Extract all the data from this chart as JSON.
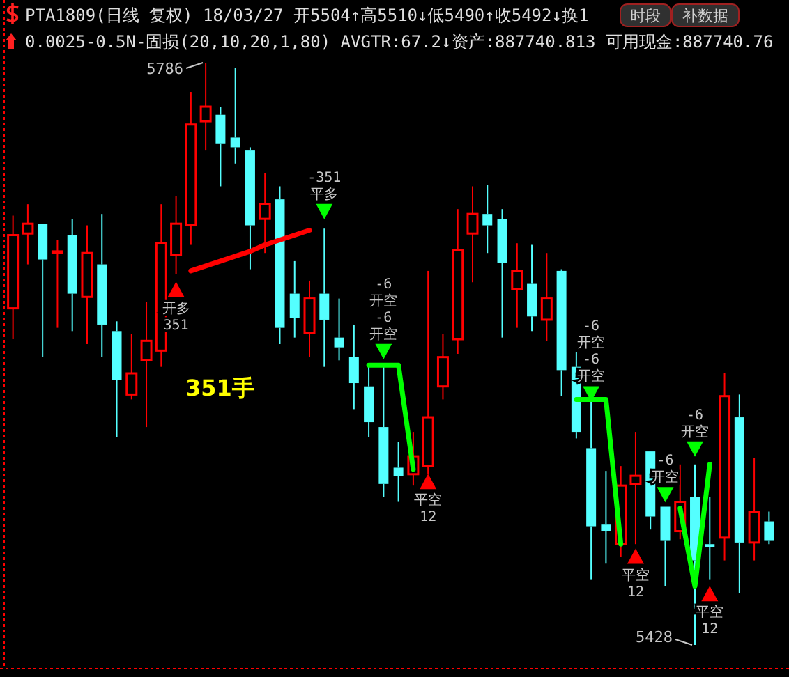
{
  "chart_data": {
    "type": "candlestick",
    "title": "PTA1809(日线 复权) 18/03/27 开5504↑高5510↓低5490↑收5492↓换1",
    "subtitle": "0.0025-0.5N-固损(20,10,20,1,80) AVGTR:67.2↓资产:887740.813 可用现金:887740.76",
    "categories": [
      null,
      null,
      null,
      null,
      null,
      null,
      null,
      null,
      null,
      null,
      null,
      null,
      null,
      null,
      null,
      null,
      null,
      null,
      null,
      null,
      null,
      null,
      null,
      null,
      null,
      null,
      null,
      null,
      null,
      null,
      null,
      null,
      null,
      null,
      null,
      null,
      null,
      null,
      null,
      null,
      null,
      null,
      null,
      null,
      null,
      null,
      null,
      null,
      null,
      null,
      null,
      null
    ],
    "ohlc": [
      [
        5635,
        5692,
        5616,
        5680
      ],
      [
        5681,
        5699,
        5662,
        5687
      ],
      [
        5687,
        5687,
        5605,
        5665
      ],
      [
        5669,
        5677,
        5623,
        5670
      ],
      [
        5680,
        5690,
        5621,
        5644
      ],
      [
        5642,
        5686,
        5613,
        5669
      ],
      [
        5662,
        5693,
        5605,
        5625
      ],
      [
        5621,
        5627,
        5556,
        5591
      ],
      [
        5582,
        5619,
        5579,
        5595
      ],
      [
        5603,
        5639,
        5562,
        5615
      ],
      [
        5609,
        5699,
        5599,
        5675
      ],
      [
        5668,
        5704,
        5656,
        5687
      ],
      [
        5686,
        5768,
        5674,
        5748
      ],
      [
        5750,
        5786,
        5732,
        5759
      ],
      [
        5754,
        5759,
        5710,
        5736
      ],
      [
        5740,
        5783,
        5724,
        5734
      ],
      [
        5732,
        5734,
        5659,
        5686
      ],
      [
        5690,
        5718,
        5669,
        5699
      ],
      [
        5702,
        5710,
        5613,
        5623
      ],
      [
        5644,
        5664,
        5617,
        5629
      ],
      [
        5620,
        5652,
        5605,
        5641
      ],
      [
        5644,
        5684,
        5599,
        5628
      ],
      [
        5617,
        5641,
        5603,
        5611
      ],
      [
        5605,
        5625,
        5573,
        5589
      ],
      [
        5587,
        5599,
        5556,
        5565
      ],
      [
        5562,
        5599,
        5519,
        5527
      ],
      [
        5537,
        5553,
        5516,
        5532
      ],
      [
        5533,
        5559,
        5526,
        5544
      ],
      [
        5538,
        5658,
        5533,
        5568
      ],
      [
        5587,
        5619,
        5579,
        5605
      ],
      [
        5616,
        5696,
        5607,
        5671
      ],
      [
        5681,
        5710,
        5651,
        5693
      ],
      [
        5693,
        5711,
        5669,
        5686
      ],
      [
        5690,
        5696,
        5617,
        5663
      ],
      [
        5647,
        5675,
        5623,
        5658
      ],
      [
        5650,
        5674,
        5621,
        5630
      ],
      [
        5628,
        5669,
        5615,
        5641
      ],
      [
        5658,
        5659,
        5581,
        5597
      ],
      [
        5599,
        5608,
        5555,
        5559
      ],
      [
        5549,
        5579,
        5468,
        5501
      ],
      [
        5502,
        5535,
        5478,
        5498
      ],
      [
        5490,
        5538,
        5482,
        5526
      ],
      [
        5527,
        5559,
        5490,
        5532
      ],
      [
        5547,
        5547,
        5499,
        5507
      ],
      [
        5513,
        5513,
        5464,
        5492
      ],
      [
        5498,
        5539,
        5493,
        5516
      ],
      [
        5519,
        5539,
        5428,
        5480
      ],
      [
        5490,
        5519,
        5468,
        5488
      ],
      [
        5494,
        5595,
        5480,
        5581
      ],
      [
        5568,
        5582,
        5460,
        5491
      ],
      [
        5491,
        5543,
        5480,
        5510
      ],
      [
        5504,
        5510,
        5490,
        5492
      ]
    ],
    "colors": [
      "#ff0000",
      "#ff0000",
      "#54ffff",
      "#ff0000",
      "#54ffff",
      "#ff0000",
      "#54ffff",
      "#54ffff",
      "#ff0000",
      "#ff0000",
      "#ff0000",
      "#ff0000",
      "#ff0000",
      "#ff0000",
      "#54ffff",
      "#54ffff",
      "#54ffff",
      "#ff0000",
      "#54ffff",
      "#54ffff",
      "#ff0000",
      "#54ffff",
      "#54ffff",
      "#54ffff",
      "#54ffff",
      "#54ffff",
      "#54ffff",
      "#ff0000",
      "#ff0000",
      "#ff0000",
      "#ff0000",
      "#ff0000",
      "#54ffff",
      "#54ffff",
      "#ff0000",
      "#54ffff",
      "#ff0000",
      "#54ffff",
      "#54ffff",
      "#54ffff",
      "#54ffff",
      "#ff0000",
      "#ff0000",
      "#54ffff",
      "#54ffff",
      "#ff0000",
      "#54ffff",
      "#54ffff",
      "#ff0000",
      "#54ffff",
      "#ff0000",
      "#54ffff"
    ],
    "series": [
      {
        "type": "line",
        "color": "#ff0000",
        "values": [
          null,
          null,
          null,
          null,
          null,
          null,
          null,
          null,
          null,
          null,
          null,
          null,
          5658,
          5661,
          5664,
          5667,
          5670,
          5674,
          5677,
          5680,
          5683,
          null,
          null,
          null,
          null,
          null,
          null,
          null,
          null,
          null,
          null,
          null,
          null,
          null,
          null,
          null,
          null,
          null,
          null,
          null,
          null,
          null,
          null,
          null,
          null,
          null,
          null,
          null,
          null,
          null,
          null,
          null
        ]
      },
      {
        "type": "line",
        "color": "#00ff00",
        "values": [
          null,
          null,
          null,
          null,
          null,
          null,
          null,
          null,
          null,
          null,
          null,
          null,
          null,
          null,
          null,
          null,
          null,
          null,
          null,
          null,
          null,
          null,
          null,
          null,
          5600,
          5600,
          5600,
          5536,
          null,
          null,
          null,
          null,
          null,
          null,
          null,
          null,
          null,
          null,
          5579,
          5579,
          5579,
          5490,
          null,
          null,
          null,
          5512,
          5464,
          5539,
          null,
          null,
          null,
          null
        ]
      },
      {
        "type": "scatter",
        "marker": "triangle",
        "color": "#ff0000",
        "values": [
          null,
          null,
          null,
          null,
          null,
          null,
          null,
          null,
          null,
          null,
          null,
          5647,
          null,
          null,
          null,
          null,
          null,
          null,
          null,
          null,
          null,
          null,
          null,
          null,
          null,
          null,
          null,
          null,
          5529,
          null,
          null,
          null,
          null,
          null,
          null,
          null,
          null,
          null,
          null,
          null,
          null,
          null,
          5483,
          null,
          null,
          null,
          null,
          5460,
          null,
          null,
          null,
          null
        ],
        "name": null
      },
      {
        "type": "scatter",
        "marker": "triangle",
        "color": "#00ff00",
        "values": [
          null,
          null,
          null,
          null,
          null,
          null,
          null,
          null,
          null,
          null,
          null,
          null,
          null,
          null,
          null,
          null,
          null,
          null,
          null,
          null,
          null,
          5694,
          null,
          null,
          null,
          5608,
          null,
          null,
          null,
          null,
          null,
          null,
          null,
          null,
          null,
          null,
          null,
          null,
          null,
          5582,
          null,
          null,
          null,
          null,
          5520,
          null,
          5548,
          null,
          null,
          null,
          null,
          null
        ]
      }
    ],
    "annotations": [
      "5786",
      "5428",
      "351手",
      "时段",
      "补数据",
      {
        "text": "开多\n351",
        "y": 5647
      },
      {
        "text": "平空\n12",
        "y": 5529
      },
      {
        "text": "平空\n12",
        "y": 5483
      },
      {
        "text": "平空\n12",
        "y": 5460
      },
      {
        "text": "-351\n平多",
        "y": 5694
      },
      {
        "text": "-6\n开空\n-6\n开空",
        "y": 5608
      },
      {
        "text": "-6\n开空\n-6\n开空",
        "y": 5582
      },
      {
        "text": "-6\n开空",
        "y": 5520
      },
      {
        "text": "-6\n开空",
        "y": 5548
      }
    ]
  }
}
